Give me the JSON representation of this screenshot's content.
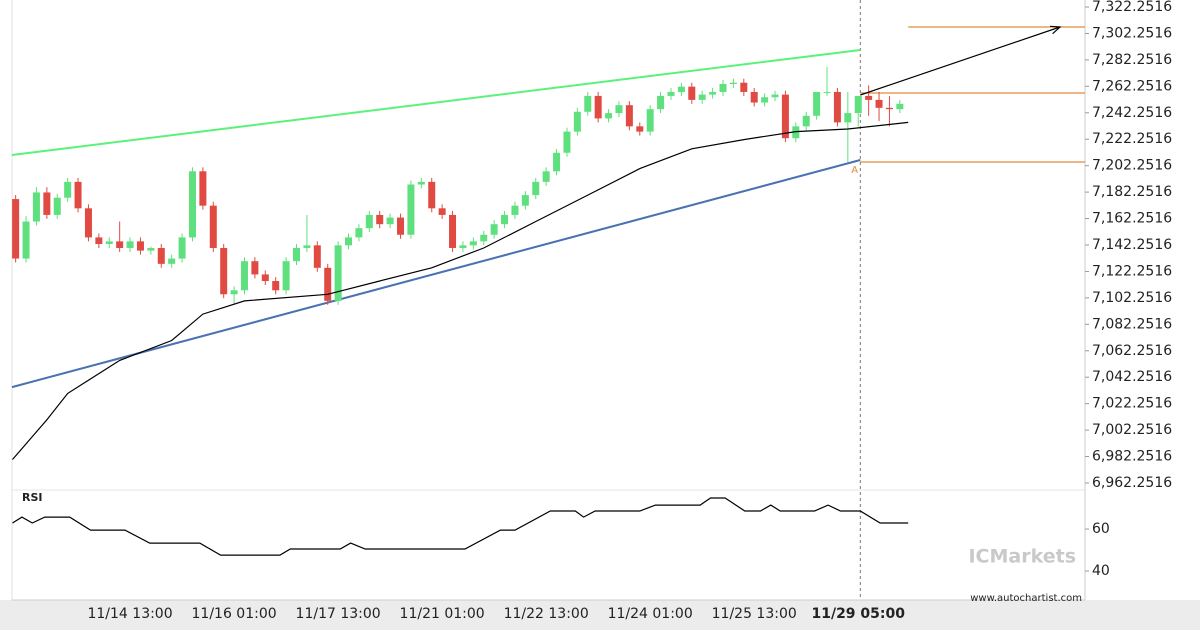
{
  "chart_data": {
    "type": "candlestick",
    "xlim": [
      -0.35,
      102.8
    ],
    "ylim": [
      6956.95,
      7327.55
    ],
    "yticks": [
      {
        "value": 7322.2516,
        "label": "7,322.2516"
      },
      {
        "value": 7302.2516,
        "label": "7,302.2516"
      },
      {
        "value": 7282.2516,
        "label": "7,282.2516"
      },
      {
        "value": 7262.2516,
        "label": "7,262.2516"
      },
      {
        "value": 7242.2516,
        "label": "7,242.2516"
      },
      {
        "value": 7222.2516,
        "label": "7,222.2516"
      },
      {
        "value": 7202.2516,
        "label": "7,202.2516"
      },
      {
        "value": 7182.2516,
        "label": "7,182.2516"
      },
      {
        "value": 7162.2516,
        "label": "7,162.2516"
      },
      {
        "value": 7142.2516,
        "label": "7,142.2516"
      },
      {
        "value": 7122.2516,
        "label": "7,122.2516"
      },
      {
        "value": 7102.2516,
        "label": "7,102.2516"
      },
      {
        "value": 7082.2516,
        "label": "7,082.2516"
      },
      {
        "value": 7062.2516,
        "label": "7,062.2516"
      },
      {
        "value": 7042.2516,
        "label": "7,042.2516"
      },
      {
        "value": 7022.2516,
        "label": "7,022.2516"
      },
      {
        "value": 7002.2516,
        "label": "7,002.2516"
      },
      {
        "value": 6982.2516,
        "label": "6,982.2516"
      },
      {
        "value": 6962.2516,
        "label": "6,962.2516"
      }
    ],
    "categories": [
      null,
      null,
      null,
      null,
      null,
      null,
      null,
      null,
      null,
      null,
      null,
      "11/14 13:00",
      null,
      null,
      null,
      null,
      null,
      null,
      null,
      null,
      null,
      "11/16 01:00",
      null,
      null,
      null,
      null,
      null,
      null,
      null,
      null,
      null,
      "11/17 13:00",
      null,
      null,
      null,
      null,
      null,
      null,
      null,
      null,
      null,
      "11/21 01:00",
      null,
      null,
      null,
      null,
      null,
      null,
      null,
      null,
      null,
      "11/22 13:00",
      null,
      null,
      null,
      null,
      null,
      null,
      null,
      null,
      null,
      "11/24 01:00",
      null,
      null,
      null,
      null,
      null,
      null,
      null,
      null,
      null,
      "11/25 13:00",
      null,
      null,
      null,
      null,
      null,
      null,
      null,
      null,
      null,
      "11/29 05:00",
      null,
      null,
      null,
      null
    ],
    "up_color": "#5fe07f",
    "down_color": "#e04a42",
    "open": [
      7177,
      7132,
      7160,
      7182,
      7165,
      7178,
      7190,
      7170,
      7148,
      7143,
      7145,
      7140,
      7145,
      7138,
      7140,
      7128,
      7132,
      7148,
      7198,
      7172,
      7140,
      7105,
      7108,
      7130,
      7120,
      7115,
      7108,
      7130,
      7140,
      7142,
      7125,
      7100,
      7142,
      7148,
      7155,
      7165,
      7158,
      7163,
      7150,
      7188,
      7190,
      7170,
      7165,
      7140,
      7142,
      7145,
      7150,
      7158,
      7165,
      7172,
      7180,
      7190,
      7198,
      7212,
      7228,
      7243,
      7255,
      7238,
      7242,
      7248,
      7232,
      7228,
      7245,
      7255,
      7258,
      7262,
      7252,
      7256,
      7258,
      7264,
      7265,
      7258,
      7250,
      7254,
      7256,
      7223,
      7232,
      7240,
      7258,
      7258,
      7235,
      7242,
      7255,
      7252,
      7246,
      7245
    ],
    "high": [
      7180,
      7164,
      7186,
      7186,
      7181,
      7193,
      7193,
      7173,
      7151,
      7148,
      7160,
      7148,
      7148,
      7141,
      7143,
      7135,
      7151,
      7201,
      7201,
      7175,
      7143,
      7111,
      7133,
      7133,
      7123,
      7118,
      7133,
      7143,
      7165,
      7145,
      7128,
      7145,
      7151,
      7158,
      7168,
      7168,
      7166,
      7166,
      7191,
      7193,
      7193,
      7173,
      7168,
      7145,
      7148,
      7153,
      7161,
      7168,
      7175,
      7183,
      7193,
      7201,
      7215,
      7231,
      7246,
      7258,
      7258,
      7245,
      7251,
      7251,
      7235,
      7248,
      7258,
      7261,
      7265,
      7265,
      7259,
      7261,
      7267,
      7268,
      7268,
      7261,
      7257,
      7259,
      7259,
      7235,
      7243,
      7258,
      7277,
      7261,
      7258,
      7255,
      7263,
      7258,
      7255,
      7252
    ],
    "low": [
      7129,
      7129,
      7157,
      7162,
      7162,
      7175,
      7167,
      7145,
      7140,
      7140,
      7137,
      7137,
      7135,
      7135,
      7125,
      7125,
      7129,
      7145,
      7169,
      7137,
      7102,
      7098,
      7105,
      7117,
      7112,
      7105,
      7105,
      7127,
      7137,
      7122,
      7097,
      7097,
      7139,
      7145,
      7152,
      7155,
      7155,
      7147,
      7147,
      7185,
      7167,
      7162,
      7137,
      7137,
      7139,
      7142,
      7147,
      7155,
      7162,
      7169,
      7177,
      7187,
      7195,
      7209,
      7225,
      7240,
      7235,
      7235,
      7239,
      7229,
      7225,
      7225,
      7242,
      7252,
      7255,
      7249,
      7249,
      7253,
      7255,
      7261,
      7255,
      7247,
      7247,
      7251,
      7220,
      7220,
      7229,
      7237,
      7255,
      7232,
      7205,
      7232,
      7240,
      7236,
      7232,
      7242
    ],
    "close": [
      7132,
      7160,
      7182,
      7165,
      7178,
      7190,
      7170,
      7148,
      7143,
      7145,
      7140,
      7145,
      7138,
      7140,
      7128,
      7132,
      7148,
      7198,
      7172,
      7140,
      7105,
      7108,
      7130,
      7120,
      7115,
      7108,
      7130,
      7140,
      7142,
      7125,
      7100,
      7142,
      7148,
      7155,
      7165,
      7158,
      7163,
      7150,
      7188,
      7190,
      7170,
      7165,
      7140,
      7142,
      7145,
      7150,
      7158,
      7165,
      7172,
      7180,
      7190,
      7198,
      7212,
      7228,
      7243,
      7255,
      7238,
      7242,
      7248,
      7232,
      7228,
      7245,
      7255,
      7258,
      7262,
      7252,
      7256,
      7258,
      7264,
      7265,
      7258,
      7250,
      7254,
      7256,
      7223,
      7232,
      7240,
      7258,
      7258,
      7235,
      7242,
      7255,
      7252,
      7246,
      7245,
      7249
    ],
    "moving_average": {
      "color": "#000000",
      "x": [
        -0.3,
        3,
        5,
        10,
        15,
        18,
        22,
        30,
        35,
        40,
        45,
        50,
        55,
        60,
        65,
        70,
        75,
        80,
        85.8
      ],
      "values": [
        6980,
        7010,
        7030,
        7055,
        7070,
        7090,
        7100,
        7105,
        7115,
        7125,
        7140,
        7160,
        7180,
        7200,
        7215,
        7222,
        7228,
        7230,
        7235
      ]
    },
    "trendlines": [
      {
        "color": "#5af27a",
        "x": [
          -0.35,
          81.2
        ],
        "values": [
          7210.3,
          7289.7
        ]
      },
      {
        "color": "#4a72b0",
        "x": [
          -0.35,
          81.2
        ],
        "values": [
          7034.8,
          7206.5
        ]
      }
    ],
    "projection": {
      "color": "#000000",
      "x": [
        81.2,
        100.4
      ],
      "values": [
        7255.7,
        7307.1
      ]
    },
    "levels": [
      {
        "color": "#e08a3c",
        "x": [
          85.8,
          102.8
        ],
        "values": [
          7307.1,
          7307.1
        ]
      },
      {
        "color": "#e08a3c",
        "x": [
          81.2,
          102.8
        ],
        "values": [
          7257.2,
          7257.2
        ]
      },
      {
        "color": "#e08a3c",
        "x": [
          81.2,
          102.8
        ],
        "values": [
          7205.0,
          7205.0
        ]
      }
    ],
    "annotation": {
      "text": "A",
      "x": 81.2,
      "value": 7205.0
    },
    "rsi": {
      "label": "RSI",
      "ylim": [
        26.2,
        78.6
      ],
      "yticks": [
        60,
        40
      ],
      "x": [
        -0.3,
        0.6,
        1.6,
        2.8,
        5.2,
        7.2,
        10.5,
        12.9,
        17.7,
        19.7,
        25.4,
        26.4,
        31.2,
        32.2,
        33.6,
        43.2,
        46.6,
        48.0,
        51.4,
        53.8,
        54.6,
        55.7,
        60.0,
        61.5,
        65.8,
        66.8,
        68.2,
        70.1,
        71.6,
        72.6,
        73.5,
        76.8,
        78.1,
        79.3,
        81.2,
        83.1,
        85.8
      ],
      "values": [
        62.9,
        65.7,
        62.9,
        65.7,
        65.7,
        59.5,
        59.5,
        53.3,
        53.3,
        47.6,
        47.6,
        50.5,
        50.5,
        53.3,
        50.5,
        50.5,
        59.5,
        59.5,
        68.6,
        68.6,
        65.7,
        68.6,
        68.6,
        71.4,
        71.4,
        74.8,
        74.8,
        68.6,
        68.6,
        71.4,
        68.6,
        68.6,
        71.4,
        68.6,
        68.6,
        62.9,
        62.9
      ]
    },
    "watermark": "ICMarkets",
    "source": "www.autochartist.com"
  }
}
